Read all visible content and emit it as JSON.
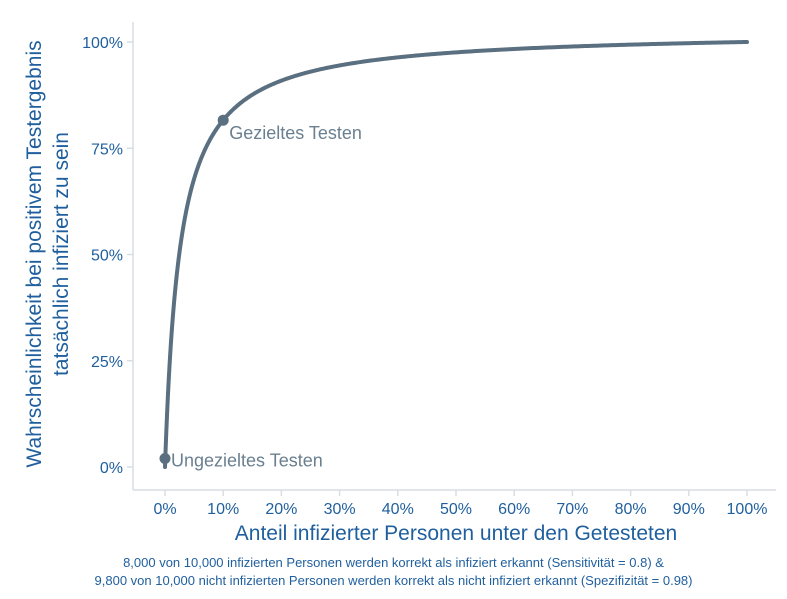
{
  "chart_data": {
    "type": "line",
    "xlabel": "Anteil infizierter Personen unter den Getesteten",
    "ylabel_lines": [
      "Wahrscheinlichkeit bei positivem Testergebnis",
      "tatsächlich infiziert zu sein"
    ],
    "x_ticks": [
      "0%",
      "10%",
      "20%",
      "30%",
      "40%",
      "50%",
      "60%",
      "70%",
      "80%",
      "90%",
      "100%"
    ],
    "y_ticks": [
      "0%",
      "25%",
      "50%",
      "75%",
      "100%"
    ],
    "xlim": [
      0,
      1
    ],
    "ylim": [
      0,
      1
    ],
    "sensitivity": 0.8,
    "specificity": 0.98,
    "series": [
      {
        "x": [
          0.001,
          0.005,
          0.01,
          0.02,
          0.03,
          0.05,
          0.075,
          0.1,
          0.15,
          0.2,
          0.25,
          0.3,
          0.4,
          0.5,
          0.6,
          0.7,
          0.8,
          0.9,
          1.0
        ],
        "y": [
          0.039,
          0.167,
          0.288,
          0.449,
          0.553,
          0.678,
          0.764,
          0.816,
          0.876,
          0.909,
          0.93,
          0.945,
          0.964,
          0.976,
          0.984,
          0.989,
          0.994,
          0.997,
          1.0
        ],
        "color": "#5a6f80"
      }
    ],
    "points": [
      {
        "label": "Ungezieltes Testen",
        "x": 0.0,
        "y": 0.02
      },
      {
        "label": "Gezieltes Testen",
        "x": 0.1,
        "y": 0.816
      }
    ],
    "grid": false
  },
  "caption": {
    "line1": "8,000 von 10,000 infizierten Personen werden korrekt als infiziert erkannt (Sensitivität = 0.8) &",
    "line2": "9,800 von 10,000 nicht infizierten Personen werden korrekt als nicht infiziert erkannt (Spezifizität = 0.98)"
  },
  "colors": {
    "line": "#5a6f80",
    "axis_text": "#1f5f9e",
    "annotation": "#6a7f90",
    "axis_line": "#d8dee4"
  }
}
